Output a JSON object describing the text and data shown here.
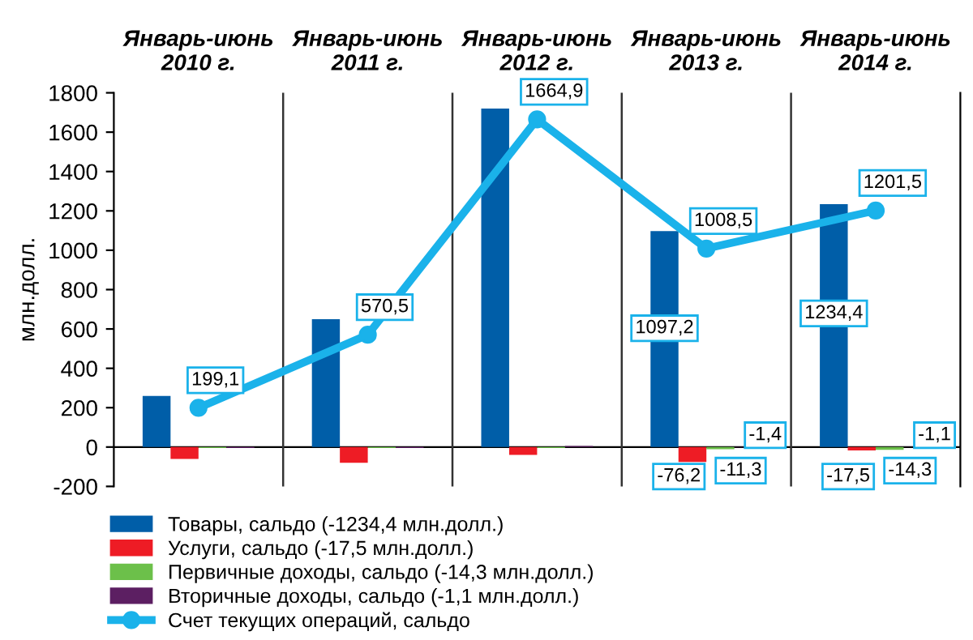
{
  "chart_data": {
    "type": "bar",
    "categories": [
      "Январь-июнь\n2010 г.",
      "Январь-июнь\n2011 г.",
      "Январь-июнь\n2012 г.",
      "Январь-июнь\n2013 г.",
      "Январь-июнь\n2014 г."
    ],
    "ylabel": "млн.долл.",
    "ylim": [
      -200,
      1800
    ],
    "yticks": [
      -200,
      0,
      200,
      400,
      600,
      800,
      1000,
      1200,
      1400,
      1600,
      1800
    ],
    "grid": "x",
    "legend": "bottom",
    "series": [
      {
        "name": "Товары, сальдо (-1234,4 млн.долл.)",
        "color": "#005ea8",
        "values": [
          260,
          650,
          1720,
          1097.2,
          1234.4
        ],
        "value_labels": [
          null,
          null,
          null,
          "1097,2",
          "1234,4"
        ]
      },
      {
        "name": "Услуги, сальдо (-17,5 млн.долл.)",
        "color": "#ee1c25",
        "values": [
          -60,
          -80,
          -40,
          -76.2,
          -17.5
        ],
        "value_labels": [
          null,
          null,
          null,
          "-76,2",
          "-17,5"
        ]
      },
      {
        "name": "Первичные доходы, сальдо (-14,3 млн.долл.)",
        "color": "#6cc04a",
        "values": [
          -5,
          -5,
          -5,
          -11.3,
          -14.3
        ],
        "value_labels": [
          null,
          null,
          null,
          "-11,3",
          "-14,3"
        ]
      },
      {
        "name": "Вторичные доходы, сальдо (-1,1 млн.долл.)",
        "color": "#5c1f62",
        "values": [
          -5,
          -5,
          5,
          -1.4,
          -1.1
        ],
        "value_labels": [
          null,
          null,
          null,
          "-1,4",
          "-1,1"
        ]
      },
      {
        "name": "Счет текущих операций, сальдо",
        "type": "line",
        "color": "#1ab2ea",
        "marker": "circle",
        "values": [
          199.1,
          570.5,
          1664.9,
          1008.5,
          1201.5
        ],
        "value_labels": [
          "199,1",
          "570,5",
          "1664,9",
          "1008,5",
          "1201,5"
        ]
      }
    ]
  }
}
